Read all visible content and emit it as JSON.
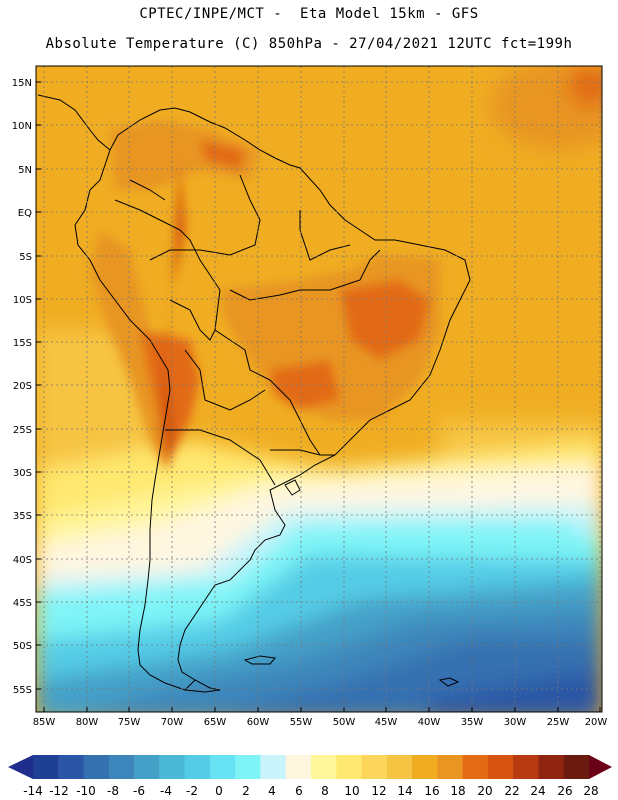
{
  "header": {
    "line1": "CPTEC/INPE/MCT -  Eta Model 15km - GFS",
    "line2": "Absolute Temperature (C) 850hPa - 27/04/2021 12UTC fct=199h"
  },
  "map": {
    "lat_labels": [
      "15N",
      "10N",
      "5N",
      "EQ",
      "5S",
      "10S",
      "15S",
      "20S",
      "25S",
      "30S",
      "35S",
      "40S",
      "45S",
      "50S",
      "55S"
    ],
    "lon_labels": [
      "85W",
      "80W",
      "75W",
      "70W",
      "65W",
      "60W",
      "55W",
      "50W",
      "45W",
      "40W",
      "35W",
      "30W",
      "25W",
      "20W"
    ]
  },
  "colorbar": {
    "labels": [
      "-14",
      "-12",
      "-10",
      "-8",
      "-6",
      "-4",
      "-2",
      "0",
      "2",
      "4",
      "6",
      "8",
      "10",
      "12",
      "14",
      "16",
      "18",
      "20",
      "22",
      "24",
      "26",
      "28"
    ],
    "colors": [
      "#1f3f95",
      "#2a56a5",
      "#3570b0",
      "#3d86bb",
      "#45a0c8",
      "#4bb8d6",
      "#55cce6",
      "#66e2f2",
      "#7ef4f7",
      "#c9f4fb",
      "#fff6e0",
      "#fff59a",
      "#ffe870",
      "#fbd65a",
      "#f6c443",
      "#f0ad22",
      "#e89522",
      "#e26b13",
      "#d65410",
      "#b83a10",
      "#8f2410",
      "#6b1a10"
    ],
    "low_color": "#1e2e8a",
    "high_color": "#6a0018"
  }
}
